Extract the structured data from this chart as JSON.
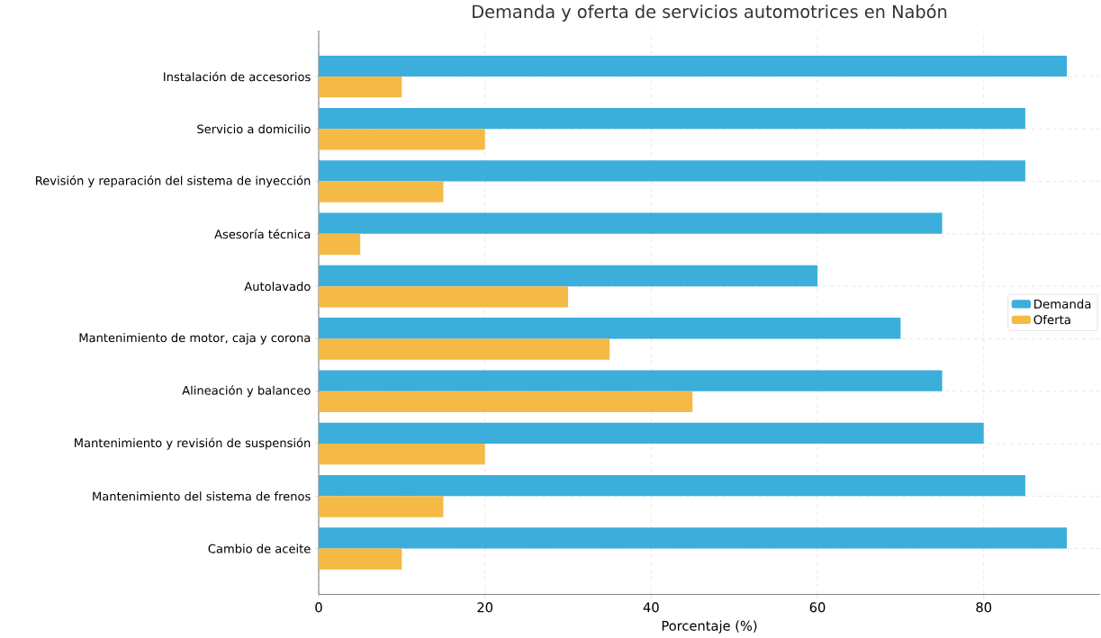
{
  "chart_data": {
    "type": "bar",
    "orientation": "horizontal",
    "title": "Demanda y oferta de servicios automotrices en Nabón",
    "xlabel": "Porcentaje (%)",
    "categories": [
      "Instalación de accesorios",
      "Servicio a domicilio",
      "Revisión y reparación del sistema de inyección",
      "Asesoría técnica",
      "Autolavado",
      "Mantenimiento de motor, caja y corona",
      "Alineación y balanceo",
      "Mantenimiento y revisión de suspensión",
      "Mantenimiento del sistema de frenos",
      "Cambio de aceite"
    ],
    "series": [
      {
        "name": "Demanda",
        "color": "#3baedb",
        "values": [
          90,
          85,
          85,
          75,
          60,
          70,
          75,
          80,
          85,
          90
        ]
      },
      {
        "name": "Oferta",
        "color": "#f5ba45",
        "values": [
          10,
          20,
          15,
          5,
          30,
          35,
          45,
          20,
          15,
          10
        ]
      }
    ],
    "xlim": [
      0,
      94
    ],
    "xticks": [
      0,
      20,
      40,
      60,
      80
    ],
    "grid": true,
    "legend": "right"
  }
}
